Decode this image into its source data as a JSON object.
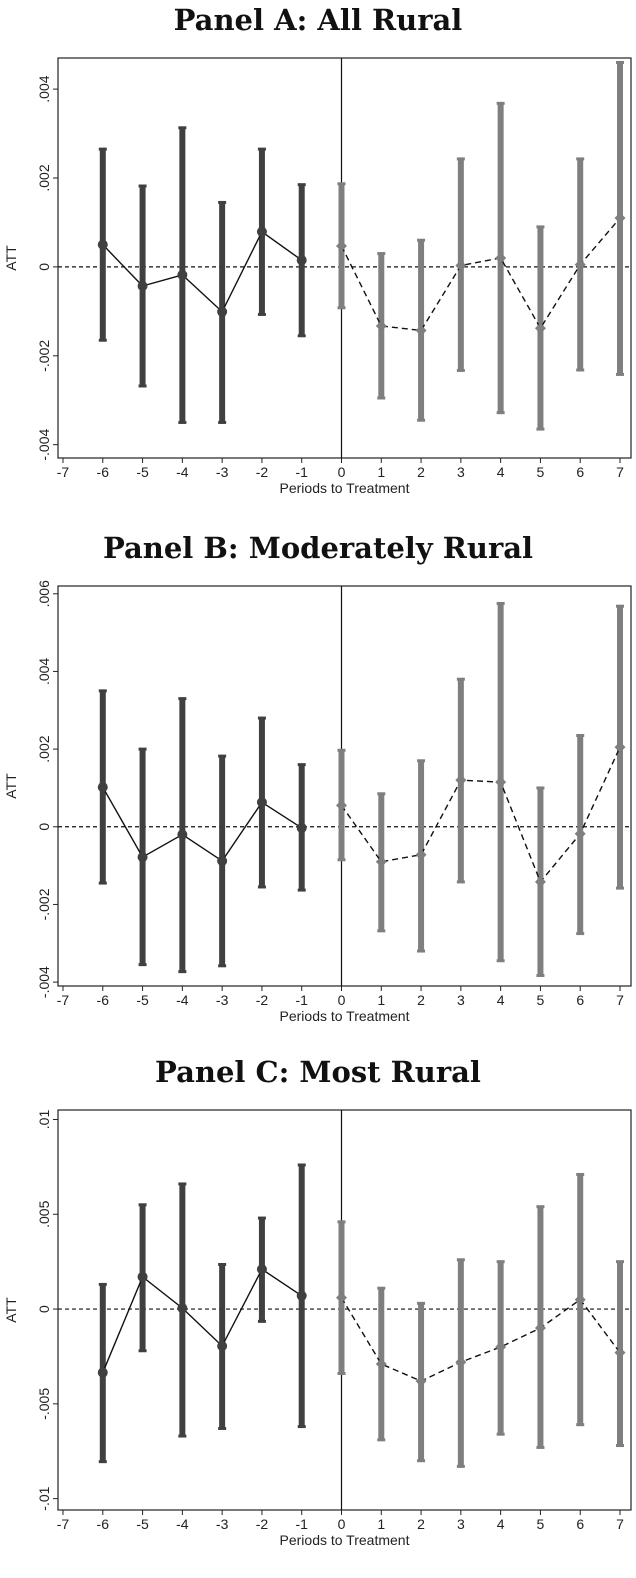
{
  "chart_data": [
    {
      "type": "line",
      "title": "Panel A: All Rural",
      "xlabel": "Periods to Treatment",
      "ylabel": "ATT",
      "xlim": [
        -7,
        7
      ],
      "ylim": [
        -0.0043,
        0.0047
      ],
      "x_ticks": [
        "-7",
        "-6",
        "-5",
        "-4",
        "-3",
        "-2",
        "-1",
        "0",
        "1",
        "2",
        "3",
        "4",
        "5",
        "6",
        "7"
      ],
      "y_ticks": [
        {
          "value": -0.004,
          "label": "-.004"
        },
        {
          "value": -0.002,
          "label": "-.002"
        },
        {
          "value": 0,
          "label": "0"
        },
        {
          "value": 0.002,
          "label": ".002"
        },
        {
          "value": 0.004,
          "label": ".004"
        }
      ],
      "series": [
        {
          "role": "pre",
          "marker": "circle",
          "color": "#404040",
          "line_style": "solid",
          "x": [
            -6,
            -5,
            -4,
            -3,
            -2,
            -1
          ],
          "y": [
            0.0005,
            -0.00043,
            -0.00018,
            -0.00101,
            0.00079,
            0.00015
          ],
          "ci_low": [
            -0.00165,
            -0.00268,
            -0.0035,
            -0.0035,
            -0.00107,
            -0.00155
          ],
          "ci_high": [
            0.00265,
            0.00182,
            0.00313,
            0.00145,
            0.00265,
            0.00185
          ]
        },
        {
          "role": "post",
          "marker": "diamond",
          "color": "#7f7f7f",
          "line_style": "dashed",
          "x": [
            0,
            1,
            2,
            3,
            4,
            5,
            6,
            7
          ],
          "y": [
            0.00047,
            -0.00133,
            -0.00143,
            3e-05,
            0.0002,
            -0.00138,
            5e-05,
            0.0011
          ],
          "ci_low": [
            -0.00092,
            -0.00295,
            -0.00345,
            -0.00233,
            -0.00328,
            -0.00365,
            -0.00232,
            -0.00242
          ],
          "ci_high": [
            0.00187,
            0.0003,
            0.0006,
            0.00243,
            0.00368,
            0.0009,
            0.00243,
            0.0046
          ]
        }
      ],
      "reference_lines": {
        "horizontal_dashed_at": 0,
        "vertical_solid_at": 0
      },
      "grid": false
    },
    {
      "type": "line",
      "title": "Panel B: Moderately Rural",
      "xlabel": "Periods to Treatment",
      "ylabel": "ATT",
      "xlim": [
        -7,
        7
      ],
      "ylim": [
        -0.0041,
        0.0062
      ],
      "x_ticks": [
        "-7",
        "-6",
        "-5",
        "-4",
        "-3",
        "-2",
        "-1",
        "0",
        "1",
        "2",
        "3",
        "4",
        "5",
        "6",
        "7"
      ],
      "y_ticks": [
        {
          "value": -0.004,
          "label": "-.004"
        },
        {
          "value": -0.002,
          "label": "-.002"
        },
        {
          "value": 0,
          "label": "0"
        },
        {
          "value": 0.002,
          "label": ".002"
        },
        {
          "value": 0.004,
          "label": ".004"
        },
        {
          "value": 0.006,
          "label": ".006"
        }
      ],
      "series": [
        {
          "role": "pre",
          "marker": "circle",
          "color": "#404040",
          "line_style": "solid",
          "x": [
            -6,
            -5,
            -4,
            -3,
            -2,
            -1
          ],
          "y": [
            0.00102,
            -0.00078,
            -0.0002,
            -0.00088,
            0.00063,
            -3e-05
          ],
          "ci_low": [
            -0.00145,
            -0.00355,
            -0.00373,
            -0.00358,
            -0.00155,
            -0.00163
          ],
          "ci_high": [
            0.0035,
            0.002,
            0.0033,
            0.00182,
            0.0028,
            0.0016
          ]
        },
        {
          "role": "post",
          "marker": "diamond",
          "color": "#7f7f7f",
          "line_style": "dashed",
          "x": [
            0,
            1,
            2,
            3,
            4,
            5,
            6,
            7
          ],
          "y": [
            0.00055,
            -0.0009,
            -0.00072,
            0.0012,
            0.00115,
            -0.00142,
            -0.00018,
            0.00205
          ],
          "ci_low": [
            -0.00085,
            -0.00268,
            -0.0032,
            -0.00142,
            -0.00345,
            -0.00383,
            -0.00275,
            -0.00158
          ],
          "ci_high": [
            0.00197,
            0.00085,
            0.0017,
            0.0038,
            0.00575,
            0.001,
            0.00235,
            0.00568
          ]
        }
      ],
      "reference_lines": {
        "horizontal_dashed_at": 0,
        "vertical_solid_at": 0
      },
      "grid": false
    },
    {
      "type": "line",
      "title": "Panel C: Most Rural",
      "xlabel": "Periods to Treatment",
      "ylabel": "ATT",
      "xlim": [
        -7,
        7
      ],
      "ylim": [
        -0.0106,
        0.0105
      ],
      "x_ticks": [
        "-7",
        "-6",
        "-5",
        "-4",
        "-3",
        "-2",
        "-1",
        "0",
        "1",
        "2",
        "3",
        "4",
        "5",
        "6",
        "7"
      ],
      "y_ticks": [
        {
          "value": -0.01,
          "label": "-.01"
        },
        {
          "value": -0.005,
          "label": "-.005"
        },
        {
          "value": 0,
          "label": "0"
        },
        {
          "value": 0.005,
          "label": ".005"
        },
        {
          "value": 0.01,
          "label": ".01"
        }
      ],
      "series": [
        {
          "role": "pre",
          "marker": "circle",
          "color": "#404040",
          "line_style": "solid",
          "x": [
            -6,
            -5,
            -4,
            -3,
            -2,
            -1
          ],
          "y": [
            -0.00335,
            0.0017,
            5e-05,
            -0.00195,
            0.0021,
            0.0007
          ],
          "ci_low": [
            -0.00805,
            -0.0022,
            -0.0067,
            -0.0063,
            -0.00065,
            -0.0062
          ],
          "ci_high": [
            0.0013,
            0.0055,
            0.0066,
            0.00235,
            0.0048,
            0.0076
          ]
        },
        {
          "role": "post",
          "marker": "diamond",
          "color": "#7f7f7f",
          "line_style": "dashed",
          "x": [
            0,
            1,
            2,
            3,
            4,
            5,
            6,
            7
          ],
          "y": [
            0.0006,
            -0.0029,
            -0.0038,
            -0.0028,
            -0.002,
            -0.001,
            0.0005,
            -0.0023
          ],
          "ci_low": [
            -0.0034,
            -0.0069,
            -0.008,
            -0.0083,
            -0.0066,
            -0.0073,
            -0.0061,
            -0.0072
          ],
          "ci_high": [
            0.0046,
            0.0011,
            0.0003,
            0.0026,
            0.0025,
            0.0054,
            0.0071,
            0.0025
          ]
        }
      ],
      "reference_lines": {
        "horizontal_dashed_at": 0,
        "vertical_solid_at": 0
      },
      "grid": false
    }
  ]
}
